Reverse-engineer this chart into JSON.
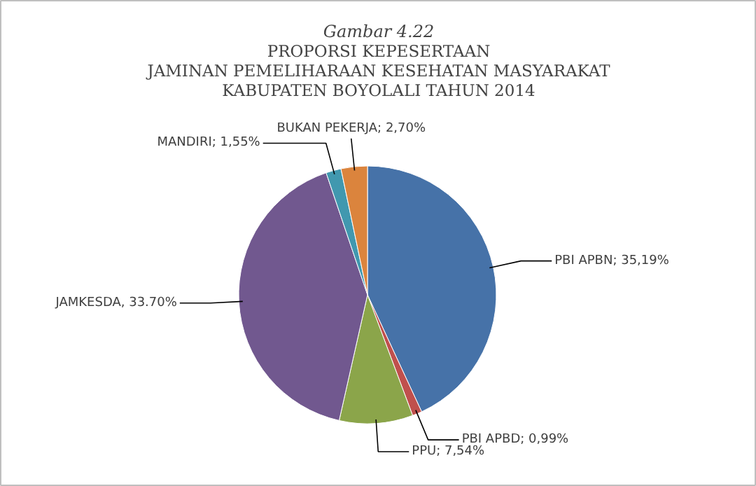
{
  "chart_data": {
    "type": "pie",
    "title": "Gambar 4.22",
    "subtitle": "PROPORSI KEPESERTAAN\nJAMINAN PEMELIHARAAN KESEHATAN MASYARAKAT\nKABUPATEN BOYOLALI TAHUN 2014",
    "categories": [
      "PBI APBN",
      "PBI APBD",
      "PPU",
      "JAMKESDA",
      "MANDIRI",
      "BUKAN PEKERJA"
    ],
    "values": [
      35.19,
      0.99,
      7.54,
      33.7,
      1.55,
      2.7
    ],
    "value_labels": [
      "35,19%",
      "0,99%",
      "7,54%",
      "33.70%",
      "1,55%",
      "2,70%"
    ],
    "colors": [
      "#4672a8",
      "#c0504d",
      "#8ba54a",
      "#71588f",
      "#4198af",
      "#db843d"
    ]
  }
}
